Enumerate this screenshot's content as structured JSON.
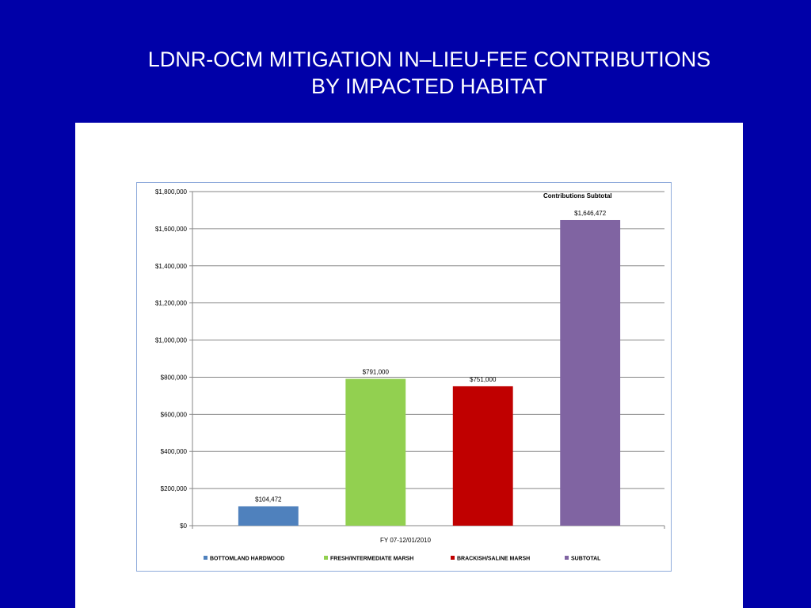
{
  "slide": {
    "title_line1": "LDNR-OCM MITIGATION IN–LIEU-FEE CONTRIBUTIONS",
    "title_line2": "BY IMPACTED HABITAT"
  },
  "chart_data": {
    "type": "bar",
    "title": "",
    "xlabel": "FY 07-12/01/2010",
    "ylabel": "",
    "ylim": [
      0,
      1800000
    ],
    "yticks": [
      0,
      200000,
      400000,
      600000,
      800000,
      1000000,
      1200000,
      1400000,
      1600000,
      1800000
    ],
    "ytick_labels": [
      "$0",
      "$200,000",
      "$400,000",
      "$600,000",
      "$800,000",
      "$1,000,000",
      "$1,200,000",
      "$1,400,000",
      "$1,600,000",
      "$1,800,000"
    ],
    "grid": true,
    "legend_position": "bottom",
    "annotation": "Contributions Subtotal",
    "series": [
      {
        "name": "BOTTOMLAND HARDWOOD",
        "value": 104472,
        "label": "$104,472",
        "color": "#4f81bd"
      },
      {
        "name": "FRESH/INTERMEDIATE MARSH",
        "value": 791000,
        "label": "$791,000",
        "color": "#92d050"
      },
      {
        "name": "BRACKISH/SALINE MARSH",
        "value": 751000,
        "label": "$751,000",
        "color": "#c00000"
      },
      {
        "name": "SUBTOTAL",
        "value": 1646472,
        "label": "$1,646,472",
        "color": "#8064a2"
      }
    ]
  }
}
